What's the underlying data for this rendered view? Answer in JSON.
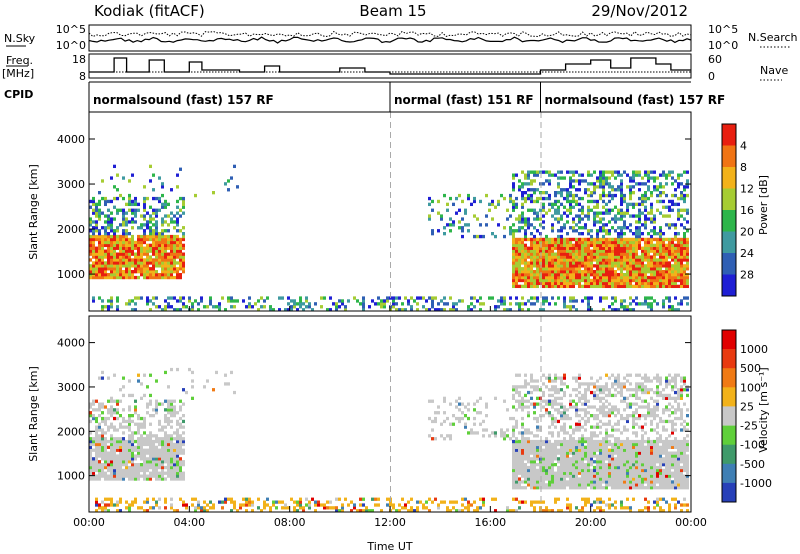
{
  "header": {
    "station": "Kodiak (fitACF)",
    "beam": "Beam 15",
    "date": "29/Nov/2012"
  },
  "strip_labels": {
    "nsky": "N.Sky",
    "freq": "Freq.",
    "freq_unit": "[MHz]",
    "cpid": "CPID",
    "nsearch": "N.Search",
    "nave": "Nave"
  },
  "strip_ticks": {
    "nsky_left": [
      "10^5",
      "10^0"
    ],
    "nsky_right": [
      "10^5",
      "10^0"
    ],
    "freq_left": [
      "18",
      "8"
    ],
    "freq_right": [
      "60",
      "0"
    ]
  },
  "cpid_modes": [
    {
      "label": "normalsound (fast) 157 RF",
      "start_hour": 0,
      "end_hour": 12
    },
    {
      "label": "normal (fast) 151 RF",
      "start_hour": 12,
      "end_hour": 18
    },
    {
      "label": "normalsound (fast) 157 RF",
      "start_hour": 18,
      "end_hour": 24
    }
  ],
  "chart_data": [
    {
      "type": "heatmap",
      "name": "power",
      "xlabel": "",
      "ylabel": "Slant Range [km]",
      "xlim": [
        0,
        24
      ],
      "ylim": [
        180,
        4600
      ],
      "y_ticks": [
        "1000",
        "2000",
        "3000",
        "4000"
      ],
      "colorbar": {
        "label": "Power [dB]",
        "ticks": [
          "4",
          "8",
          "12",
          "16",
          "20",
          "24",
          "28"
        ],
        "colors": [
          "#1f1fd4",
          "#2f5fb4",
          "#3f9aa0",
          "#2db54a",
          "#a6cc33",
          "#f2b21a",
          "#f07414",
          "#e81f10"
        ]
      }
    },
    {
      "type": "heatmap",
      "name": "velocity",
      "xlabel": "Time UT",
      "ylabel": "Slant Range [km]",
      "xlim": [
        0,
        24
      ],
      "ylim": [
        180,
        4600
      ],
      "y_ticks": [
        "1000",
        "2000",
        "3000",
        "4000"
      ],
      "x_ticks": [
        "00:00",
        "04:00",
        "08:00",
        "12:00",
        "16:00",
        "20:00",
        "00:00"
      ],
      "colorbar": {
        "label": "Velocity [m s⁻¹]",
        "ticks": [
          "1000",
          "500",
          "100",
          "25",
          "-25",
          "-100",
          "-500",
          "-1000"
        ],
        "colors": [
          "#2740b8",
          "#3f7fb4",
          "#3f9a6a",
          "#5fcf3a",
          "#c8c8c8",
          "#f2b21a",
          "#f07a14",
          "#e83a10",
          "#e00000"
        ]
      }
    }
  ]
}
